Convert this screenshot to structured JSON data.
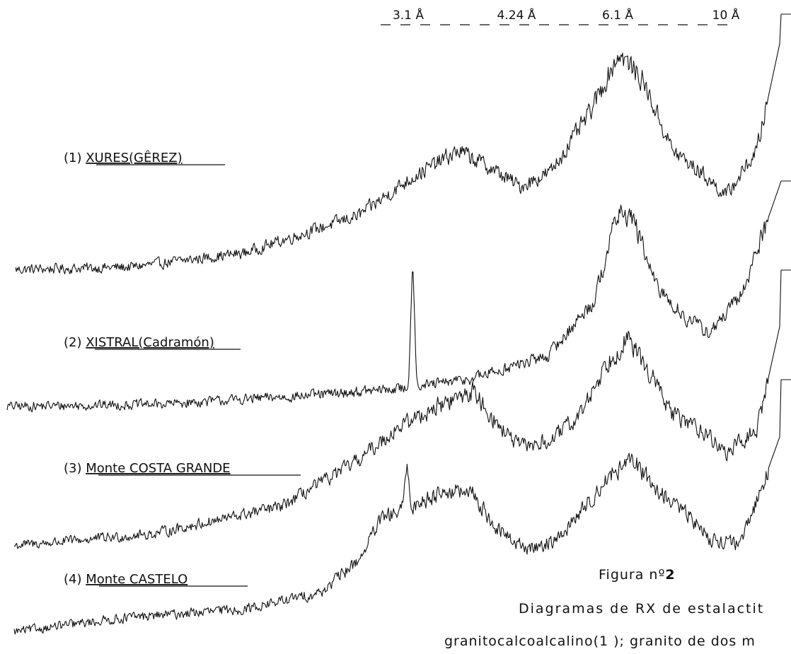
{
  "chart_data": {
    "type": "line",
    "xlabel": "",
    "ylabel": "",
    "grid": false,
    "top_markers": [
      {
        "label": "3.1 Å",
        "d_angstrom": 3.1
      },
      {
        "label": "4.24 Å",
        "d_angstrom": 4.24
      },
      {
        "label": "6.1 Å",
        "d_angstrom": 6.1
      },
      {
        "label": "10 Å",
        "d_angstrom": 10
      }
    ],
    "series": [
      {
        "name": "(1) XURES(GÊREZ)",
        "label_num": "(1)",
        "label_text": "XURES(GÊREZ)",
        "shape": [
          [
            0,
            0.05
          ],
          [
            0.15,
            0.06
          ],
          [
            0.3,
            0.12
          ],
          [
            0.45,
            0.28
          ],
          [
            0.52,
            0.44
          ],
          [
            0.58,
            0.55
          ],
          [
            0.62,
            0.48
          ],
          [
            0.66,
            0.4
          ],
          [
            0.7,
            0.46
          ],
          [
            0.75,
            0.7
          ],
          [
            0.79,
            0.96
          ],
          [
            0.82,
            0.85
          ],
          [
            0.86,
            0.55
          ],
          [
            0.9,
            0.45
          ],
          [
            0.93,
            0.36
          ],
          [
            0.97,
            0.55
          ],
          [
            1.0,
            1.0
          ]
        ],
        "peaks": []
      },
      {
        "name": "(2) XISTRAL(Cadramón)",
        "label_num": "(2)",
        "label_text": "XISTRAL(Cadramón)",
        "shape": [
          [
            0,
            0.04
          ],
          [
            0.2,
            0.05
          ],
          [
            0.4,
            0.09
          ],
          [
            0.52,
            0.12
          ],
          [
            0.6,
            0.16
          ],
          [
            0.7,
            0.26
          ],
          [
            0.76,
            0.5
          ],
          [
            0.79,
            0.88
          ],
          [
            0.81,
            0.86
          ],
          [
            0.84,
            0.56
          ],
          [
            0.88,
            0.42
          ],
          [
            0.91,
            0.36
          ],
          [
            0.95,
            0.52
          ],
          [
            1.0,
            1.0
          ]
        ],
        "peaks": [
          [
            0.525,
            0.65
          ]
        ]
      },
      {
        "name": "(3) Monte COSTA GRANDE",
        "label_num": "(3)",
        "label_text": "Monte COSTA GRANDE",
        "shape": [
          [
            0,
            0.05
          ],
          [
            0.18,
            0.1
          ],
          [
            0.35,
            0.22
          ],
          [
            0.45,
            0.42
          ],
          [
            0.5,
            0.56
          ],
          [
            0.55,
            0.65
          ],
          [
            0.6,
            0.72
          ],
          [
            0.63,
            0.58
          ],
          [
            0.66,
            0.48
          ],
          [
            0.7,
            0.5
          ],
          [
            0.74,
            0.62
          ],
          [
            0.77,
            0.82
          ],
          [
            0.8,
            0.95
          ],
          [
            0.83,
            0.8
          ],
          [
            0.86,
            0.62
          ],
          [
            0.9,
            0.55
          ],
          [
            0.93,
            0.45
          ],
          [
            0.97,
            0.55
          ],
          [
            1.0,
            1.0
          ]
        ],
        "peaks": []
      },
      {
        "name": "(4) Monte CASTELO",
        "label_num": "(4)",
        "label_text": "Monte CASTELO",
        "shape": [
          [
            0,
            0.05
          ],
          [
            0.15,
            0.12
          ],
          [
            0.3,
            0.16
          ],
          [
            0.4,
            0.24
          ],
          [
            0.45,
            0.4
          ],
          [
            0.48,
            0.6
          ],
          [
            0.52,
            0.66
          ],
          [
            0.56,
            0.74
          ],
          [
            0.6,
            0.72
          ],
          [
            0.63,
            0.55
          ],
          [
            0.67,
            0.45
          ],
          [
            0.71,
            0.5
          ],
          [
            0.75,
            0.68
          ],
          [
            0.78,
            0.82
          ],
          [
            0.81,
            0.88
          ],
          [
            0.84,
            0.74
          ],
          [
            0.88,
            0.62
          ],
          [
            0.91,
            0.5
          ],
          [
            0.95,
            0.48
          ],
          [
            1.0,
            1.0
          ]
        ],
        "peaks": [
          [
            0.513,
            0.85
          ]
        ]
      }
    ]
  },
  "caption": {
    "figure_label": "Figura nº",
    "figure_number": "2",
    "line1": "Diagramas de RX de estalactit",
    "line2": "granitocalcoalcalino(1 ); granito de dos m"
  },
  "colors": {
    "ink": "#111111",
    "background": "#ffffff"
  }
}
